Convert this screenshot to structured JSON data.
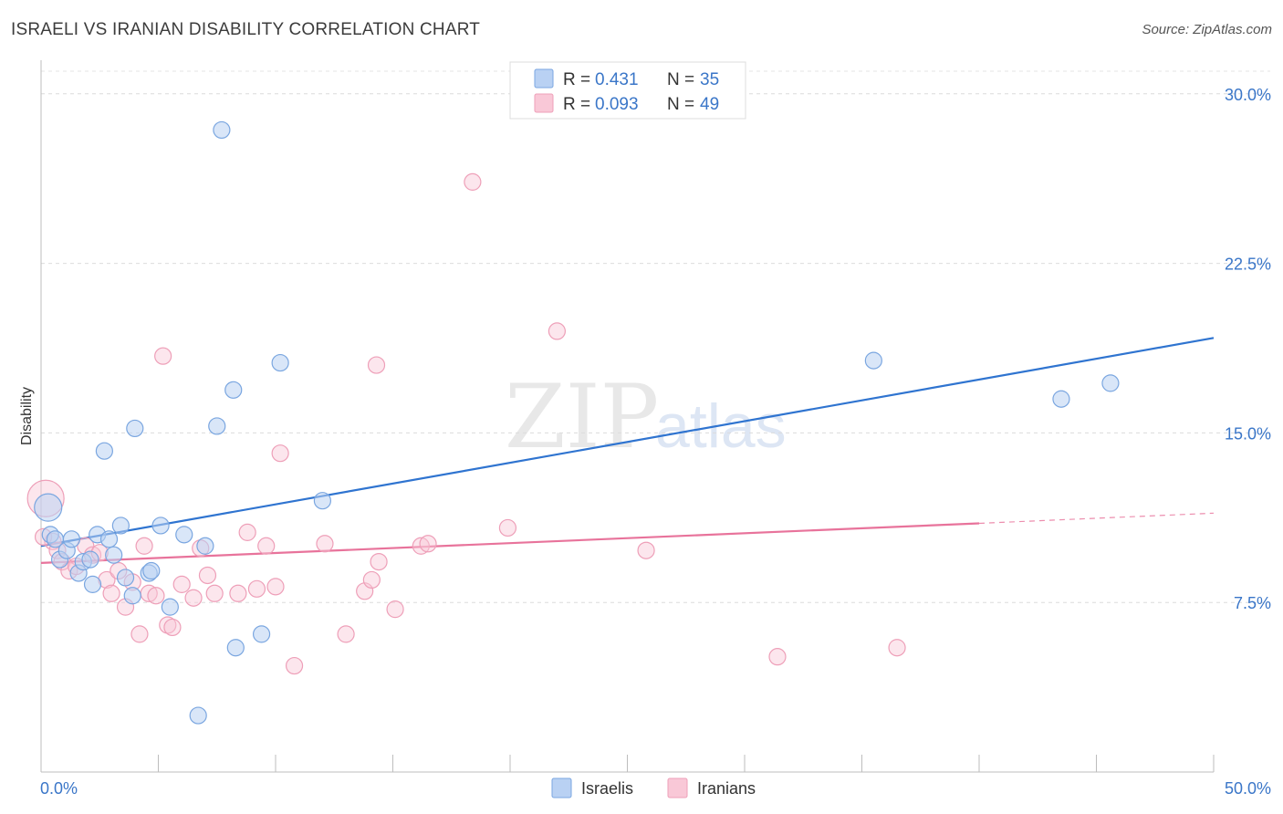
{
  "header": {
    "title": "ISRAELI VS IRANIAN DISABILITY CORRELATION CHART",
    "source": "Source: ZipAtlas.com"
  },
  "watermark": {
    "zip": "ZIP",
    "atlas": "atlas"
  },
  "legend": {
    "rows": [
      {
        "r_label": "R =",
        "r_value": "0.431",
        "n_label": "N =",
        "n_value": "35",
        "color": "#8db4ea"
      },
      {
        "r_label": "R =",
        "r_value": "0.093",
        "n_label": "N =",
        "n_value": "49",
        "color": "#f4a8bf"
      }
    ]
  },
  "bottom_legend": {
    "series_a": "Israelis",
    "series_b": "Iranians"
  },
  "colors": {
    "blue": "#2f74d0",
    "pink": "#e8739b",
    "blue_fill": "#b9d1f3",
    "pink_fill": "#f9c8d7",
    "tick": "#3a76c8"
  },
  "chart_data": {
    "type": "scatter",
    "title": "ISRAELI VS IRANIAN DISABILITY CORRELATION CHART",
    "xlabel": "",
    "ylabel": "Disability",
    "xlim": [
      0,
      50
    ],
    "ylim": [
      0,
      31
    ],
    "x_tick_labels": [
      "0.0%",
      "50.0%"
    ],
    "y_ticks": [
      7.5,
      15.0,
      22.5,
      30.0
    ],
    "y_tick_labels": [
      "7.5%",
      "15.0%",
      "22.5%",
      "30.0%"
    ],
    "grid": true,
    "series": [
      {
        "name": "Israelis",
        "R": 0.431,
        "N": 35,
        "trend": {
          "x": [
            0,
            50
          ],
          "y": [
            10.0,
            19.2
          ]
        },
        "points": [
          [
            7.7,
            28.4
          ],
          [
            2.7,
            14.2
          ],
          [
            4.0,
            15.2
          ],
          [
            8.2,
            16.9
          ],
          [
            7.5,
            15.3
          ],
          [
            10.2,
            18.1
          ],
          [
            12.0,
            12.0
          ],
          [
            35.5,
            18.2
          ],
          [
            43.5,
            16.5
          ],
          [
            45.6,
            17.2
          ],
          [
            0.3,
            11.7
          ],
          [
            0.4,
            10.5
          ],
          [
            0.6,
            10.3
          ],
          [
            0.8,
            9.4
          ],
          [
            1.1,
            9.8
          ],
          [
            1.3,
            10.3
          ],
          [
            1.6,
            8.8
          ],
          [
            1.8,
            9.3
          ],
          [
            2.1,
            9.4
          ],
          [
            2.2,
            8.3
          ],
          [
            2.4,
            10.5
          ],
          [
            2.9,
            10.3
          ],
          [
            3.1,
            9.6
          ],
          [
            3.4,
            10.9
          ],
          [
            3.6,
            8.6
          ],
          [
            3.9,
            7.8
          ],
          [
            4.6,
            8.8
          ],
          [
            4.7,
            8.9
          ],
          [
            5.1,
            10.9
          ],
          [
            5.5,
            7.3
          ],
          [
            6.1,
            10.5
          ],
          [
            7.0,
            10.0
          ],
          [
            8.3,
            5.5
          ],
          [
            9.4,
            6.1
          ],
          [
            6.7,
            2.5
          ]
        ]
      },
      {
        "name": "Iranians",
        "R": 0.093,
        "N": 49,
        "trend": {
          "x": [
            0,
            40
          ],
          "y": [
            9.25,
            11.0
          ]
        },
        "trend_extension": {
          "x": [
            40,
            50
          ],
          "y": [
            11.0,
            11.45
          ]
        },
        "points": [
          [
            18.4,
            26.1
          ],
          [
            22.0,
            19.5
          ],
          [
            5.2,
            18.4
          ],
          [
            14.3,
            18.0
          ],
          [
            10.2,
            14.1
          ],
          [
            0.2,
            12.1
          ],
          [
            0.5,
            10.2
          ],
          [
            0.7,
            9.8
          ],
          [
            0.9,
            9.3
          ],
          [
            1.2,
            8.9
          ],
          [
            1.5,
            9.1
          ],
          [
            1.9,
            10.0
          ],
          [
            2.2,
            9.6
          ],
          [
            2.5,
            9.7
          ],
          [
            2.8,
            8.5
          ],
          [
            3.0,
            7.9
          ],
          [
            3.3,
            8.9
          ],
          [
            3.6,
            7.3
          ],
          [
            3.9,
            8.4
          ],
          [
            4.2,
            6.1
          ],
          [
            4.4,
            10.0
          ],
          [
            4.6,
            7.9
          ],
          [
            4.9,
            7.8
          ],
          [
            5.4,
            6.5
          ],
          [
            5.6,
            6.4
          ],
          [
            6.0,
            8.3
          ],
          [
            6.5,
            7.7
          ],
          [
            6.8,
            9.9
          ],
          [
            7.1,
            8.7
          ],
          [
            7.4,
            7.9
          ],
          [
            8.4,
            7.9
          ],
          [
            8.8,
            10.6
          ],
          [
            9.2,
            8.1
          ],
          [
            9.6,
            10.0
          ],
          [
            10.0,
            8.2
          ],
          [
            10.8,
            4.7
          ],
          [
            12.1,
            10.1
          ],
          [
            13.0,
            6.1
          ],
          [
            13.8,
            8.0
          ],
          [
            14.1,
            8.5
          ],
          [
            14.4,
            9.3
          ],
          [
            15.1,
            7.2
          ],
          [
            16.2,
            10.0
          ],
          [
            16.5,
            10.1
          ],
          [
            19.9,
            10.8
          ],
          [
            25.8,
            9.8
          ],
          [
            31.4,
            5.1
          ],
          [
            36.5,
            5.5
          ],
          [
            0.1,
            10.4
          ]
        ]
      }
    ]
  }
}
